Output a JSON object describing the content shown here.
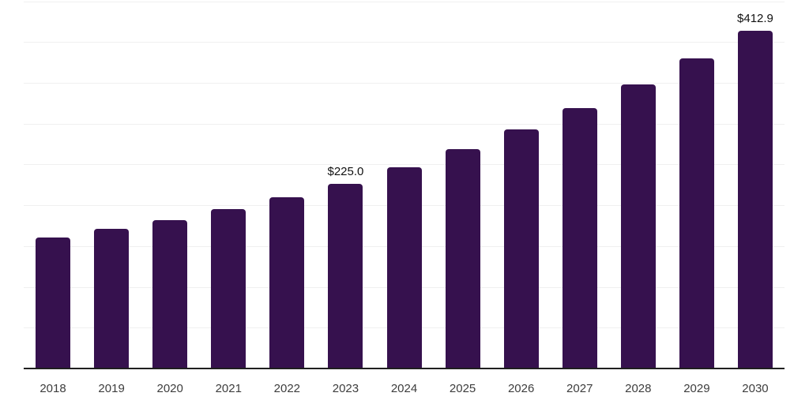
{
  "chart_data": {
    "type": "bar",
    "title": "",
    "xlabel": "",
    "ylabel": "",
    "categories": [
      "2018",
      "2019",
      "2020",
      "2021",
      "2022",
      "2023",
      "2024",
      "2025",
      "2026",
      "2027",
      "2028",
      "2029",
      "2030"
    ],
    "values": [
      159.3,
      170.6,
      181.0,
      193.9,
      208.9,
      225.0,
      245.4,
      267.6,
      291.9,
      318.3,
      347.1,
      378.6,
      412.9
    ],
    "data_labels": [
      "",
      "",
      "",
      "",
      "",
      "$225.0",
      "",
      "",
      "",
      "",
      "",
      "",
      "$412.9"
    ],
    "ylim": [
      0,
      452.5
    ],
    "gridline_step": 50,
    "grid": true,
    "legend": false,
    "bar_color": "#36114E",
    "gridline_color": "#f0f0f0",
    "axis_line_color": "#1f1f1f",
    "data_label_color": "#111111",
    "tick_label_color": "#3d3d3d"
  }
}
